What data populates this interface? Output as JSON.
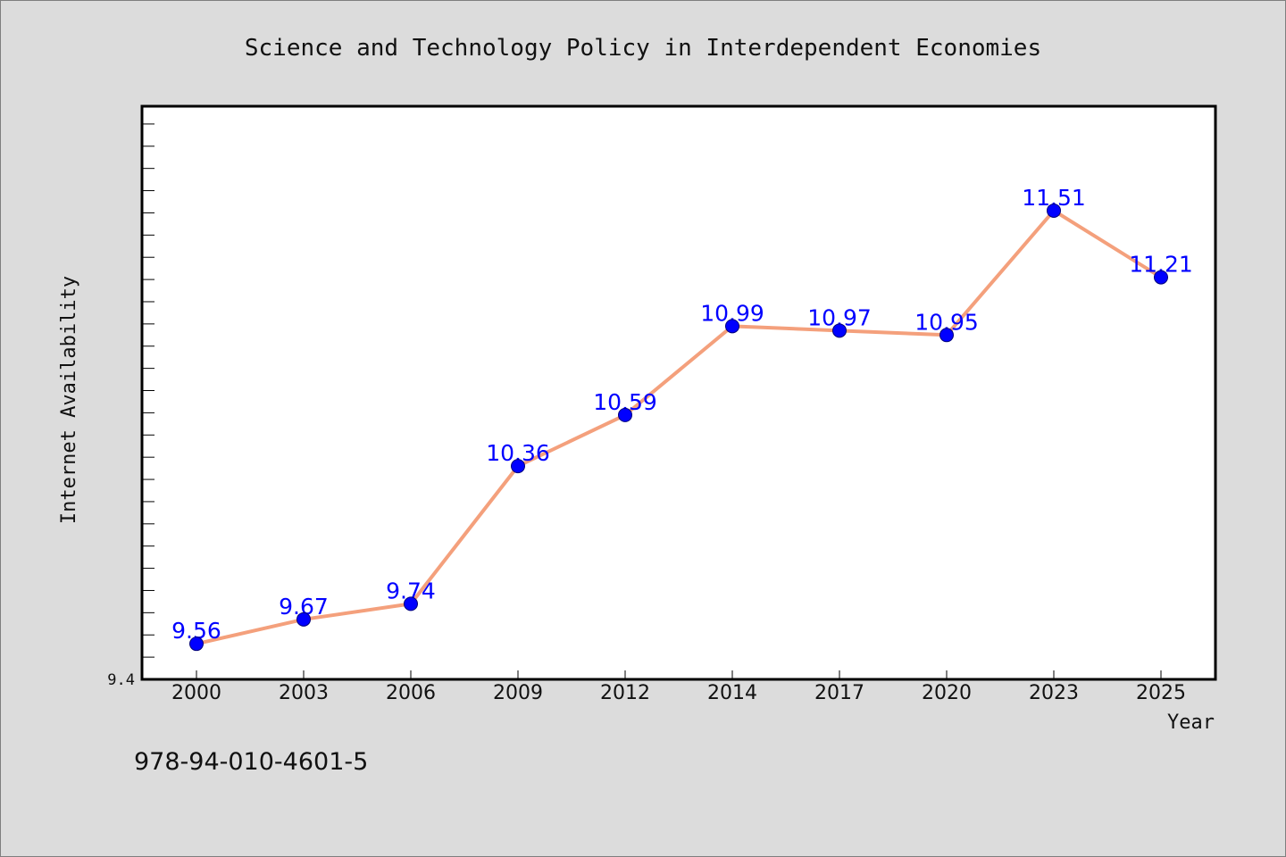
{
  "chart_data": {
    "type": "line",
    "title": "Science and Technology Policy in Interdependent Economies",
    "xlabel": "Year",
    "ylabel": "Internet Availability",
    "categories": [
      "2000",
      "2003",
      "2006",
      "2009",
      "2012",
      "2014",
      "2017",
      "2020",
      "2023",
      "2025"
    ],
    "series": [
      {
        "values": [
          9.56,
          9.67,
          9.74,
          10.36,
          10.59,
          10.99,
          10.97,
          10.95,
          11.51,
          11.21
        ],
        "labels": [
          "9.56",
          "9.67",
          "9.74",
          "10.36",
          "10.59",
          "10.99",
          "10.97",
          "10.95",
          "11.51",
          "11.21"
        ],
        "line_color": "#f4a07c",
        "marker_color": "#0000ff"
      }
    ],
    "ylim": [
      9.4,
      11.98
    ],
    "ytick_labels": [
      "9.4"
    ],
    "label_color": "#0000ff",
    "grid": false,
    "legend": "none"
  },
  "footer": {
    "isbn": "978-94-010-4601-5"
  },
  "colors": {
    "background": "#dcdcdc",
    "plot_background": "#ffffff",
    "frame": "#000000"
  }
}
